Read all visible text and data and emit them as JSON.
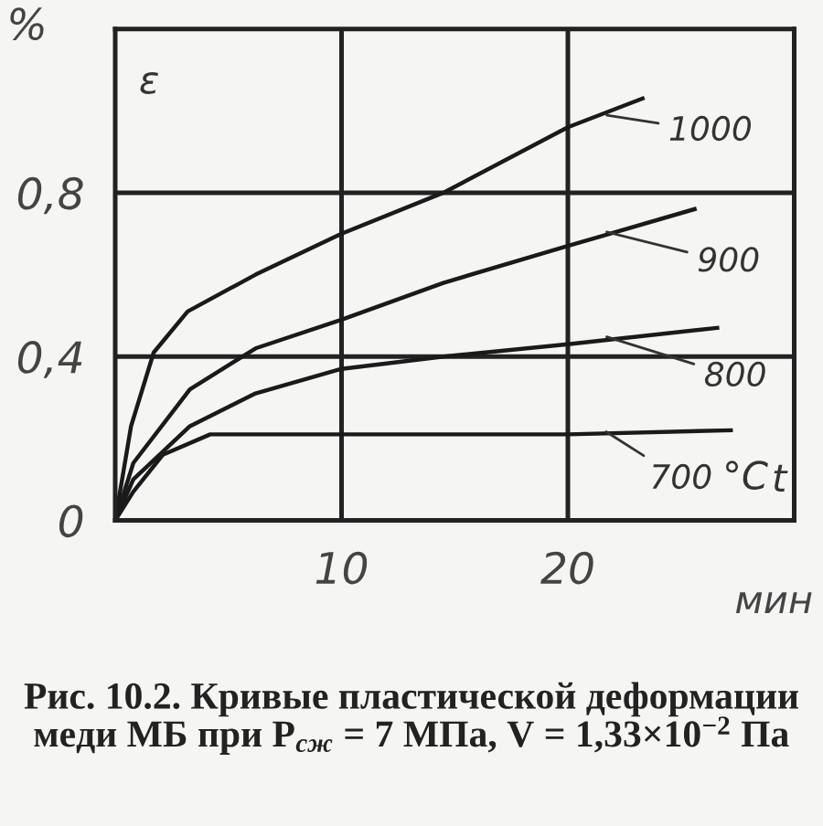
{
  "chart_data": {
    "type": "line",
    "ylabel": "%",
    "xlabel": "мин",
    "series": [
      {
        "name": "1000",
        "color": "#1a1a1a",
        "x": [
          0,
          0.7,
          1.7,
          3.2,
          6.2,
          10,
          14.5,
          20,
          23.3
        ],
        "values": [
          0,
          0.23,
          0.41,
          0.51,
          0.6,
          0.7,
          0.8,
          0.96,
          1.03
        ]
      },
      {
        "name": "900",
        "color": "#1a1a1a",
        "x": [
          0,
          0.8,
          3.3,
          6.2,
          10,
          14.5,
          20,
          25.6
        ],
        "values": [
          0,
          0.14,
          0.32,
          0.42,
          0.49,
          0.58,
          0.67,
          0.76
        ]
      },
      {
        "name": "800",
        "color": "#1a1a1a",
        "x": [
          0,
          0.8,
          3.3,
          6.2,
          10,
          14.5,
          20,
          26.6
        ],
        "values": [
          0,
          0.1,
          0.23,
          0.31,
          0.37,
          0.4,
          0.43,
          0.47
        ]
      },
      {
        "name": "700",
        "color": "#1a1a1a",
        "x": [
          0,
          0.8,
          2.1,
          4.2,
          10,
          20,
          27.2
        ],
        "values": [
          0,
          0.07,
          0.16,
          0.21,
          0.21,
          0.21,
          0.22
        ]
      }
    ],
    "xlim": [
      0,
      30
    ],
    "ylim": [
      0,
      1.2
    ],
    "xticks": [
      10,
      20
    ],
    "yticks": [
      0,
      {
        "value": 0.4,
        "label": "0,4"
      },
      {
        "value": 0.8,
        "label": "0,8"
      }
    ],
    "grid": true,
    "marker": "none",
    "line_style": "solid",
    "legend": false,
    "annotations": [
      "ε",
      "°C",
      "t",
      "Рис. 10.2. Кривые пластической деформации меди МБ при P$_{сж}$ = 7 МПа, V = 1,33×10$^{−2}$ Па"
    ]
  }
}
